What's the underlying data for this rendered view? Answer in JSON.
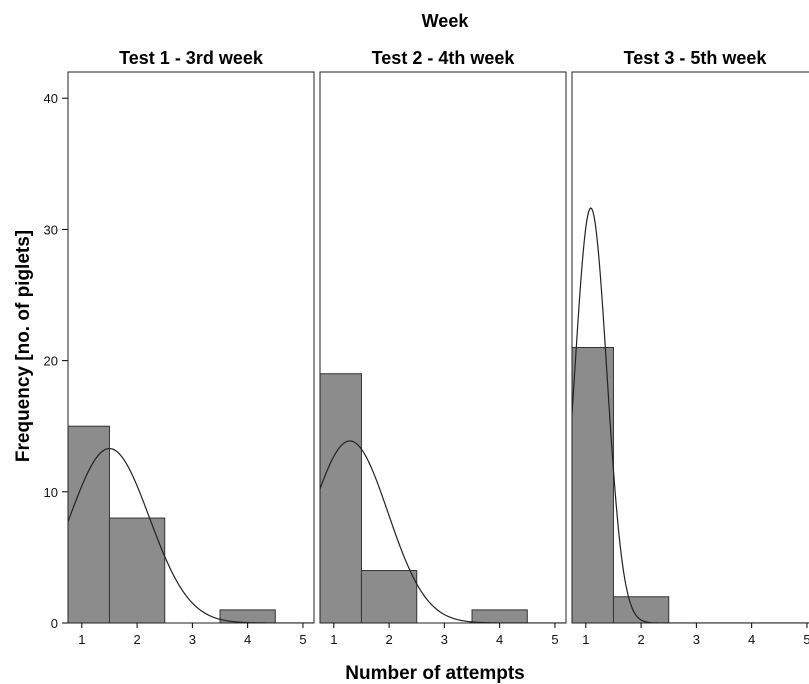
{
  "chart_data": {
    "type": "bar",
    "super_title": "Week",
    "xlabel": "Number of attempts",
    "ylabel": "Frequency [no. of piglets]",
    "xlim": [
      0.75,
      5.2
    ],
    "ylim": [
      0,
      42
    ],
    "x_ticks": [
      "1",
      "2",
      "3",
      "4",
      "5"
    ],
    "y_ticks": [
      "0",
      "10",
      "20",
      "30",
      "40"
    ],
    "grid": false,
    "panels": [
      {
        "title": "Test 1 - 3rd week",
        "bins": [
          [
            0.5,
            1.5
          ],
          [
            1.5,
            2.5
          ],
          [
            2.5,
            3.5
          ],
          [
            3.5,
            4.5
          ]
        ],
        "values": [
          15,
          8,
          0,
          1
        ],
        "normal_curve": {
          "mean": 1.5,
          "sd": 0.72,
          "n": 24,
          "bin_width": 1
        }
      },
      {
        "title": "Test 2 - 4th week",
        "bins": [
          [
            0.5,
            1.5
          ],
          [
            1.5,
            2.5
          ],
          [
            2.5,
            3.5
          ],
          [
            3.5,
            4.5
          ]
        ],
        "values": [
          19,
          4,
          0,
          1
        ],
        "normal_curve": {
          "mean": 1.29,
          "sd": 0.69,
          "n": 24,
          "bin_width": 1
        }
      },
      {
        "title": "Test 3 - 5th week",
        "bins": [
          [
            0.5,
            1.5
          ],
          [
            1.5,
            2.5
          ],
          [
            2.5,
            3.5
          ],
          [
            3.5,
            4.5
          ]
        ],
        "values": [
          21,
          2,
          0,
          0
        ],
        "normal_curve": {
          "mean": 1.09,
          "sd": 0.29,
          "n": 23,
          "bin_width": 1
        }
      }
    ]
  }
}
